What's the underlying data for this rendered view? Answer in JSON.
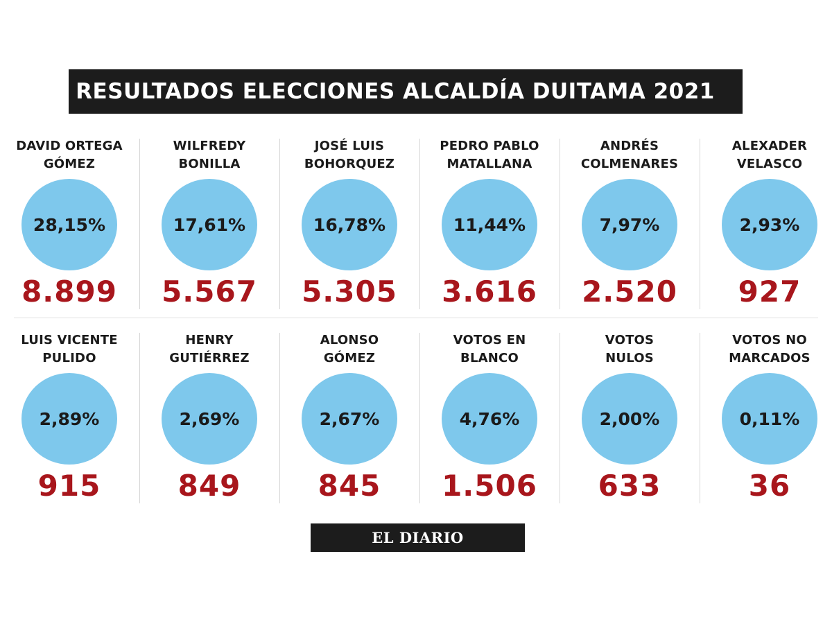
{
  "title": "RESULTADOS ELECCIONES ALCALDÍA DUITAMA 2021",
  "footer": "EL DIARIO",
  "colors": {
    "circle": "#7ec8ec",
    "votes": "#a8161c",
    "bar": "#1c1c1c"
  },
  "chart_data": {
    "type": "table",
    "title": "RESULTADOS ELECCIONES ALCALDÍA DUITAMA 2021",
    "items": [
      {
        "name_lines": [
          "DAVID ORTEGA",
          "GÓMEZ"
        ],
        "percent": "28,15%",
        "votes": "8.899"
      },
      {
        "name_lines": [
          "WILFREDY",
          "BONILLA"
        ],
        "percent": "17,61%",
        "votes": "5.567"
      },
      {
        "name_lines": [
          "JOSÉ LUIS",
          "BOHORQUEZ"
        ],
        "percent": "16,78%",
        "votes": "5.305"
      },
      {
        "name_lines": [
          "PEDRO PABLO",
          "MATALLANA"
        ],
        "percent": "11,44%",
        "votes": "3.616"
      },
      {
        "name_lines": [
          "ANDRÉS",
          "COLMENARES"
        ],
        "percent": "7,97%",
        "votes": "2.520"
      },
      {
        "name_lines": [
          "ALEXADER",
          "VELASCO"
        ],
        "percent": "2,93%",
        "votes": "927"
      },
      {
        "name_lines": [
          "LUIS VICENTE",
          "PULIDO"
        ],
        "percent": "2,89%",
        "votes": "915"
      },
      {
        "name_lines": [
          "HENRY",
          "GUTIÉRREZ"
        ],
        "percent": "2,69%",
        "votes": "849"
      },
      {
        "name_lines": [
          "ALONSO",
          "GÓMEZ"
        ],
        "percent": "2,67%",
        "votes": "845"
      },
      {
        "name_lines": [
          "VOTOS EN",
          "BLANCO"
        ],
        "percent": "4,76%",
        "votes": "1.506"
      },
      {
        "name_lines": [
          "VOTOS",
          "NULOS"
        ],
        "percent": "2,00%",
        "votes": "633"
      },
      {
        "name_lines": [
          "VOTOS NO",
          "MARCADOS"
        ],
        "percent": "0,11%",
        "votes": "36"
      }
    ]
  }
}
